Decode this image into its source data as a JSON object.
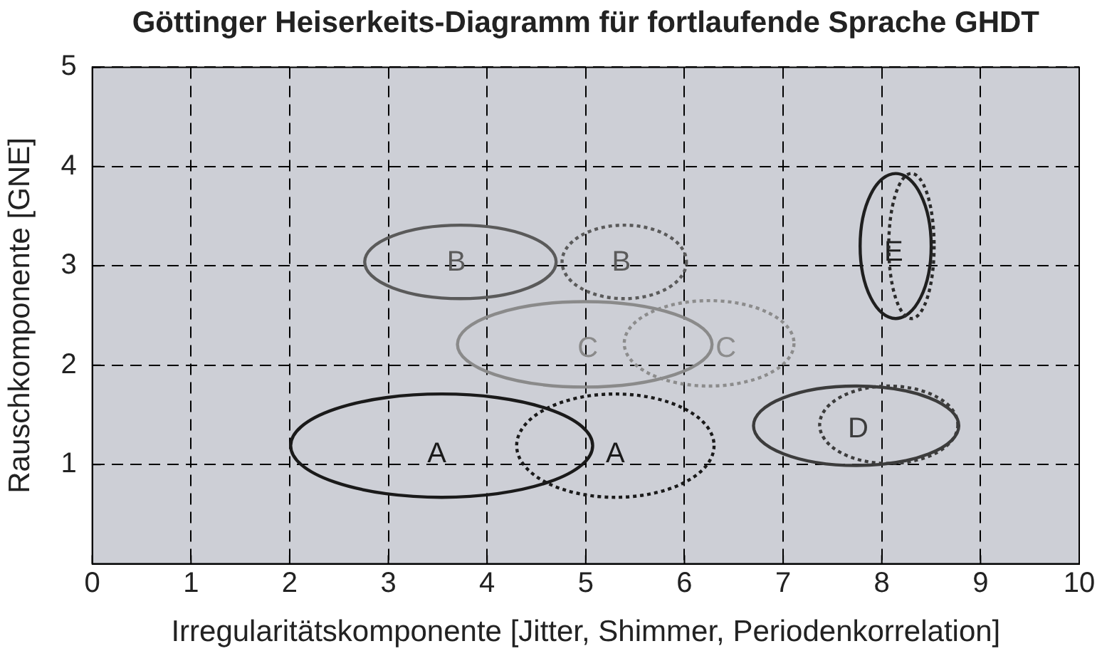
{
  "chart_data": {
    "type": "scatter",
    "title": "Göttinger Heiserkeits-Diagramm für fortlaufende Sprache GHDT",
    "xlabel": "Irregularitätskomponente [Jitter, Shimmer, Periodenkorrelation]",
    "ylabel": "Rauschkomponente [GNE]",
    "xlim": [
      0,
      10
    ],
    "ylim": [
      0,
      5
    ],
    "xticks": [
      0,
      1,
      2,
      3,
      4,
      5,
      6,
      7,
      8,
      9,
      10
    ],
    "yticks": [
      1,
      2,
      3,
      4,
      5
    ],
    "grid": true,
    "annotations": [
      "A",
      "A",
      "B",
      "B",
      "C",
      "C",
      "D",
      "E"
    ]
  }
}
